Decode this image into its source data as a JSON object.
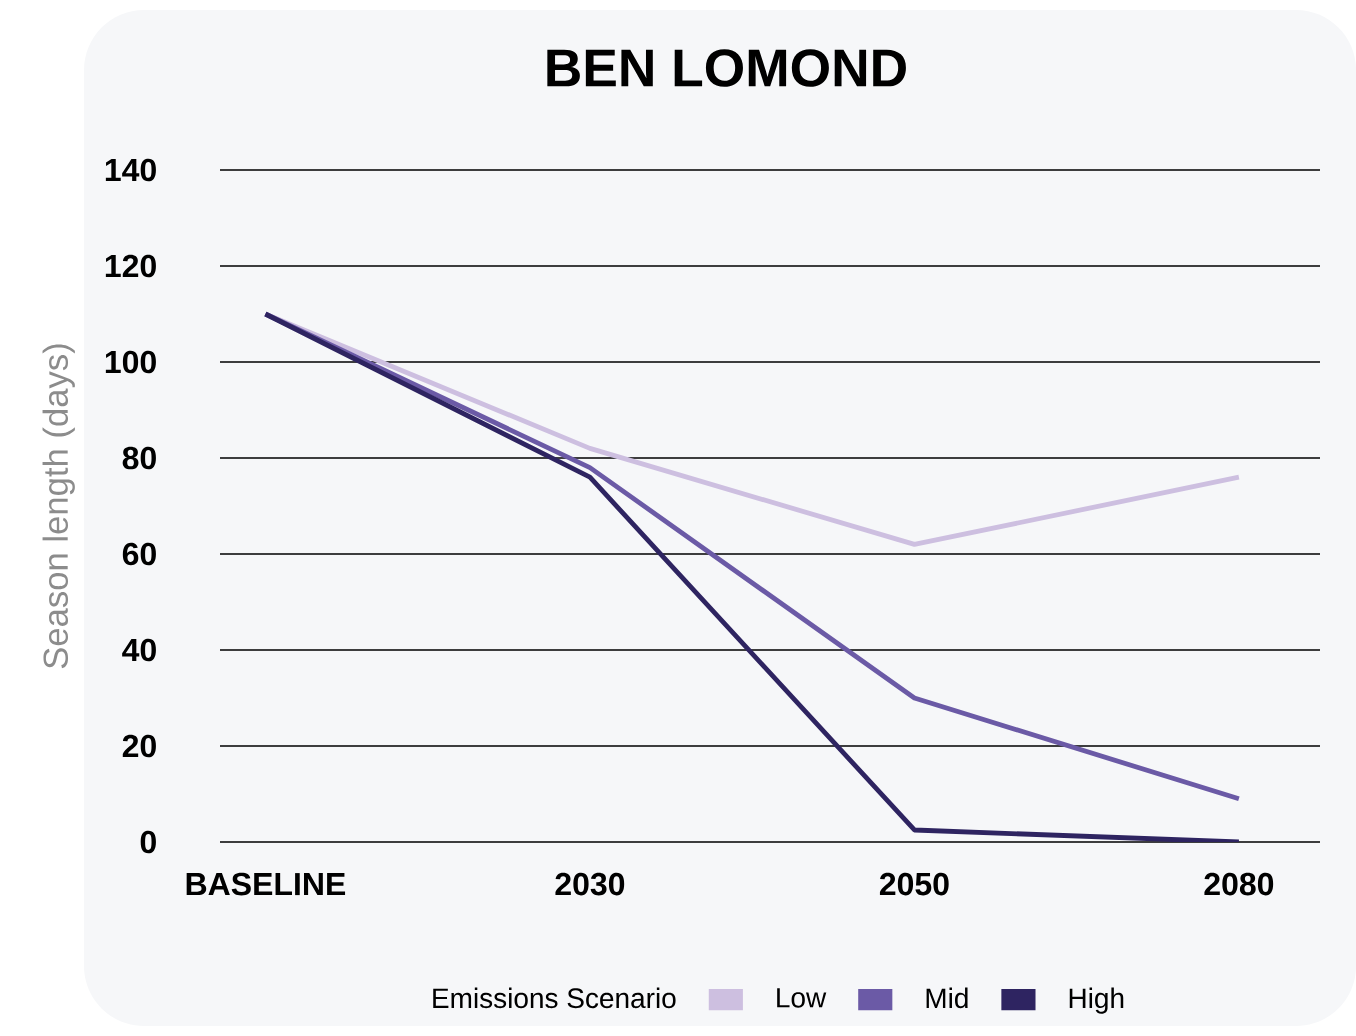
{
  "chart_data": {
    "type": "line",
    "title": "BEN LOMOND",
    "ylabel": "Season length (days)",
    "legend_title": "Emissions Scenario",
    "categories": [
      "BASELINE",
      "2030",
      "2050",
      "2080"
    ],
    "series": [
      {
        "name": "Low",
        "color": "#cdbfe0",
        "values": [
          110,
          82,
          62,
          76
        ]
      },
      {
        "name": "Mid",
        "color": "#6b5aa6",
        "values": [
          110,
          78,
          30,
          9
        ]
      },
      {
        "name": "High",
        "color": "#2e2461",
        "values": [
          110,
          76,
          2.5,
          0
        ]
      }
    ],
    "ylim": [
      0,
      140
    ],
    "yticks": [
      0,
      20,
      40,
      60,
      80,
      100,
      120,
      140
    ],
    "grid": "y",
    "legend": "bottom",
    "marker": "none",
    "line_style": "solid"
  }
}
